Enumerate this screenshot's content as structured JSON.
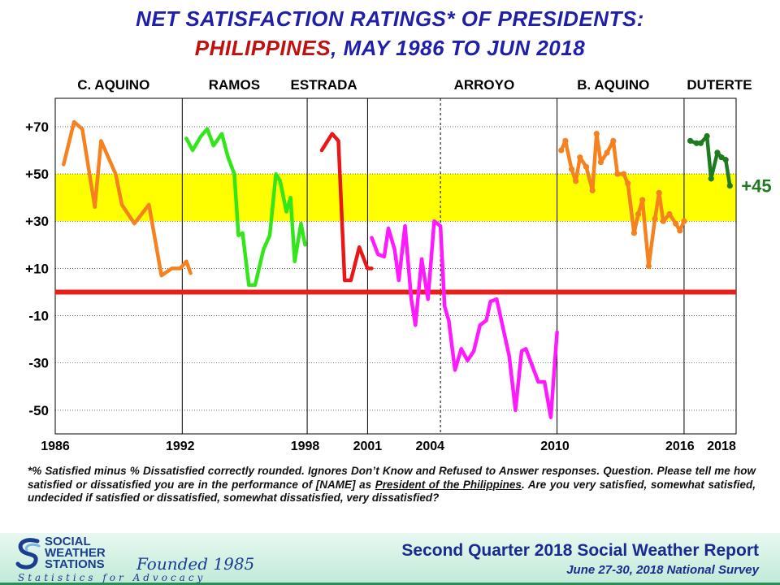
{
  "title": {
    "line1": "NET SATISFACTION  RATINGS* OF PRESIDENTS:",
    "line2_country": "PHILIPPINES",
    "line2_sep": ",",
    "line2_range": "  MAY 1986 TO JUN 2018"
  },
  "chart_data": {
    "type": "line",
    "y_range": [
      -60,
      82
    ],
    "y_ticks": [
      {
        "v": 70,
        "label": "+70"
      },
      {
        "v": 50,
        "label": "+50"
      },
      {
        "v": 30,
        "label": "+30"
      },
      {
        "v": 10,
        "label": "+10"
      },
      {
        "v": -10,
        "label": "-10"
      },
      {
        "v": -30,
        "label": "-30"
      },
      {
        "v": -50,
        "label": "-50"
      }
    ],
    "x_range": [
      1986.0,
      2018.7
    ],
    "x_ticks": [
      {
        "v": 1986,
        "label": "1986"
      },
      {
        "v": 1992,
        "label": "1992"
      },
      {
        "v": 1998,
        "label": "1998"
      },
      {
        "v": 2001,
        "label": "2001"
      },
      {
        "v": 2004,
        "label": "2004"
      },
      {
        "v": 2010,
        "label": "2010"
      },
      {
        "v": 2016,
        "label": "2016"
      },
      {
        "v": 2018,
        "label": "2018"
      }
    ],
    "term_dividers": [
      1992.1,
      1998.1,
      2001.0,
      2004.5,
      2010.1,
      2016.2
    ],
    "dashed_dividers": [
      2004.5
    ],
    "band": {
      "from": 30,
      "to": 50,
      "color": "#ffff00"
    },
    "zero_line": {
      "value": 0,
      "color": "#e8201b"
    },
    "presidents": [
      {
        "name": "C. AQUINO",
        "label_x": 1988.8
      },
      {
        "name": "RAMOS",
        "label_x": 1994.6
      },
      {
        "name": "ESTRADA",
        "label_x": 1998.9
      },
      {
        "name": "ARROYO",
        "label_x": 2006.6
      },
      {
        "name": "B. AQUINO",
        "label_x": 2012.8
      },
      {
        "name": "DUTERTE",
        "label_x": 2017.9
      }
    ],
    "series": [
      {
        "color": "#f5821f",
        "marker": false,
        "x": [
          1986.4,
          1986.9,
          1987.3,
          1987.9,
          1988.2,
          1988.9,
          1989.2,
          1989.8,
          1990.5,
          1991.1,
          1991.6,
          1992.0,
          1992.3
        ],
        "y": [
          54,
          72,
          69,
          36,
          64,
          50,
          37,
          29,
          37,
          7,
          10,
          10,
          13
        ]
      },
      {
        "color": "#f5821f",
        "marker": false,
        "x": [
          1992.3,
          1992.5
        ],
        "y": [
          13,
          8
        ]
      },
      {
        "color": "#33e61a",
        "marker": false,
        "x": [
          1992.3,
          1992.6,
          1993.0,
          1993.3,
          1993.6,
          1994.0,
          1994.3,
          1994.6,
          1994.8,
          1995.0,
          1995.3,
          1995.6,
          1996.0,
          1996.3,
          1996.6,
          1996.8,
          1997.1,
          1997.3,
          1997.5,
          1997.8,
          1998.0
        ],
        "y": [
          65,
          60,
          66,
          69,
          62,
          67,
          57,
          50,
          24,
          25,
          3,
          3,
          18,
          24,
          50,
          47,
          34,
          40,
          13,
          29,
          20
        ]
      },
      {
        "color": "#e81818",
        "marker": false,
        "x": [
          1998.8,
          1999.3,
          1999.6,
          1999.9,
          2000.2,
          2000.6,
          2001.0,
          2001.2
        ],
        "y": [
          60,
          67,
          64,
          5,
          5,
          19,
          10,
          10
        ]
      },
      {
        "color": "#ff19ff",
        "marker": false,
        "x": [
          2001.2,
          2001.5,
          2001.8,
          2002.0,
          2002.3,
          2002.5,
          2002.8,
          2003.1,
          2003.3,
          2003.6,
          2003.9,
          2004.0,
          2004.2,
          2004.5,
          2004.7,
          2004.9,
          2005.2,
          2005.5,
          2005.8,
          2006.1,
          2006.4,
          2006.7,
          2006.9,
          2007.2,
          2007.5,
          2007.8,
          2008.1,
          2008.4,
          2008.6,
          2008.9,
          2009.2,
          2009.5,
          2009.8,
          2010.1
        ],
        "y": [
          23,
          16,
          15,
          27,
          18,
          5,
          28,
          -3,
          -14,
          14,
          -3,
          8,
          30,
          28,
          -6,
          -12,
          -33,
          -24,
          -29,
          -25,
          -14,
          -12,
          -4,
          -3,
          -15,
          -27,
          -50,
          -25,
          -24,
          -31,
          -38,
          -38,
          -53,
          -17
        ]
      },
      {
        "color": "#f5821f",
        "marker": true,
        "x": [
          2010.3,
          2010.5,
          2010.8,
          2011.0,
          2011.2,
          2011.5,
          2011.8,
          2012.0,
          2012.2,
          2012.5,
          2012.8,
          2013.0,
          2013.3,
          2013.5,
          2013.8,
          2014.0,
          2014.2,
          2014.5,
          2014.8,
          2015.0,
          2015.2,
          2015.5,
          2015.8,
          2016.0,
          2016.2
        ],
        "y": [
          60,
          64,
          52,
          47,
          57,
          53,
          43,
          67,
          55,
          59,
          64,
          50,
          50,
          46,
          25,
          33,
          39,
          11,
          31,
          42,
          30,
          33,
          29,
          26,
          30
        ]
      },
      {
        "color": "#1e7b1e",
        "marker": true,
        "x": [
          2016.5,
          2016.8,
          2017.0,
          2017.3,
          2017.5,
          2017.8,
          2018.0,
          2018.2,
          2018.4
        ],
        "y": [
          64,
          63,
          63,
          66,
          48,
          59,
          57,
          56,
          45
        ]
      }
    ],
    "end_label": {
      "text": "+45",
      "x": 2018.4,
      "y": 45,
      "color": "#1e7b1e"
    }
  },
  "footnote": {
    "p1": "*% Satisfied  minus  % Dissatisfied  correctly  rounded.  Ignores Don’t Know and Refused to Answer responses.  Question.  Please  tell  me  how  satisfied  or dissatisfied  you  are  in the  performance  of  [NAME]  as ",
    "p2": "President  of the  Philippines",
    "p3": ".   Are  you  very  satisfied,  somewhat  satisfied,  undecided  if satisfied  or dissatisfied,  somewhat dissatisfied,  very dissatisfied?"
  },
  "footer": {
    "logo_lines": [
      "SOCIAL",
      "WEATHER",
      "STATIONS"
    ],
    "logo_script": "Founded 1985",
    "logo_tagline": "Statistics for Advocacy",
    "report_title": "Second Quarter 2018 Social Weather Report",
    "survey_line": "June 27-30, 2018 National Survey"
  }
}
